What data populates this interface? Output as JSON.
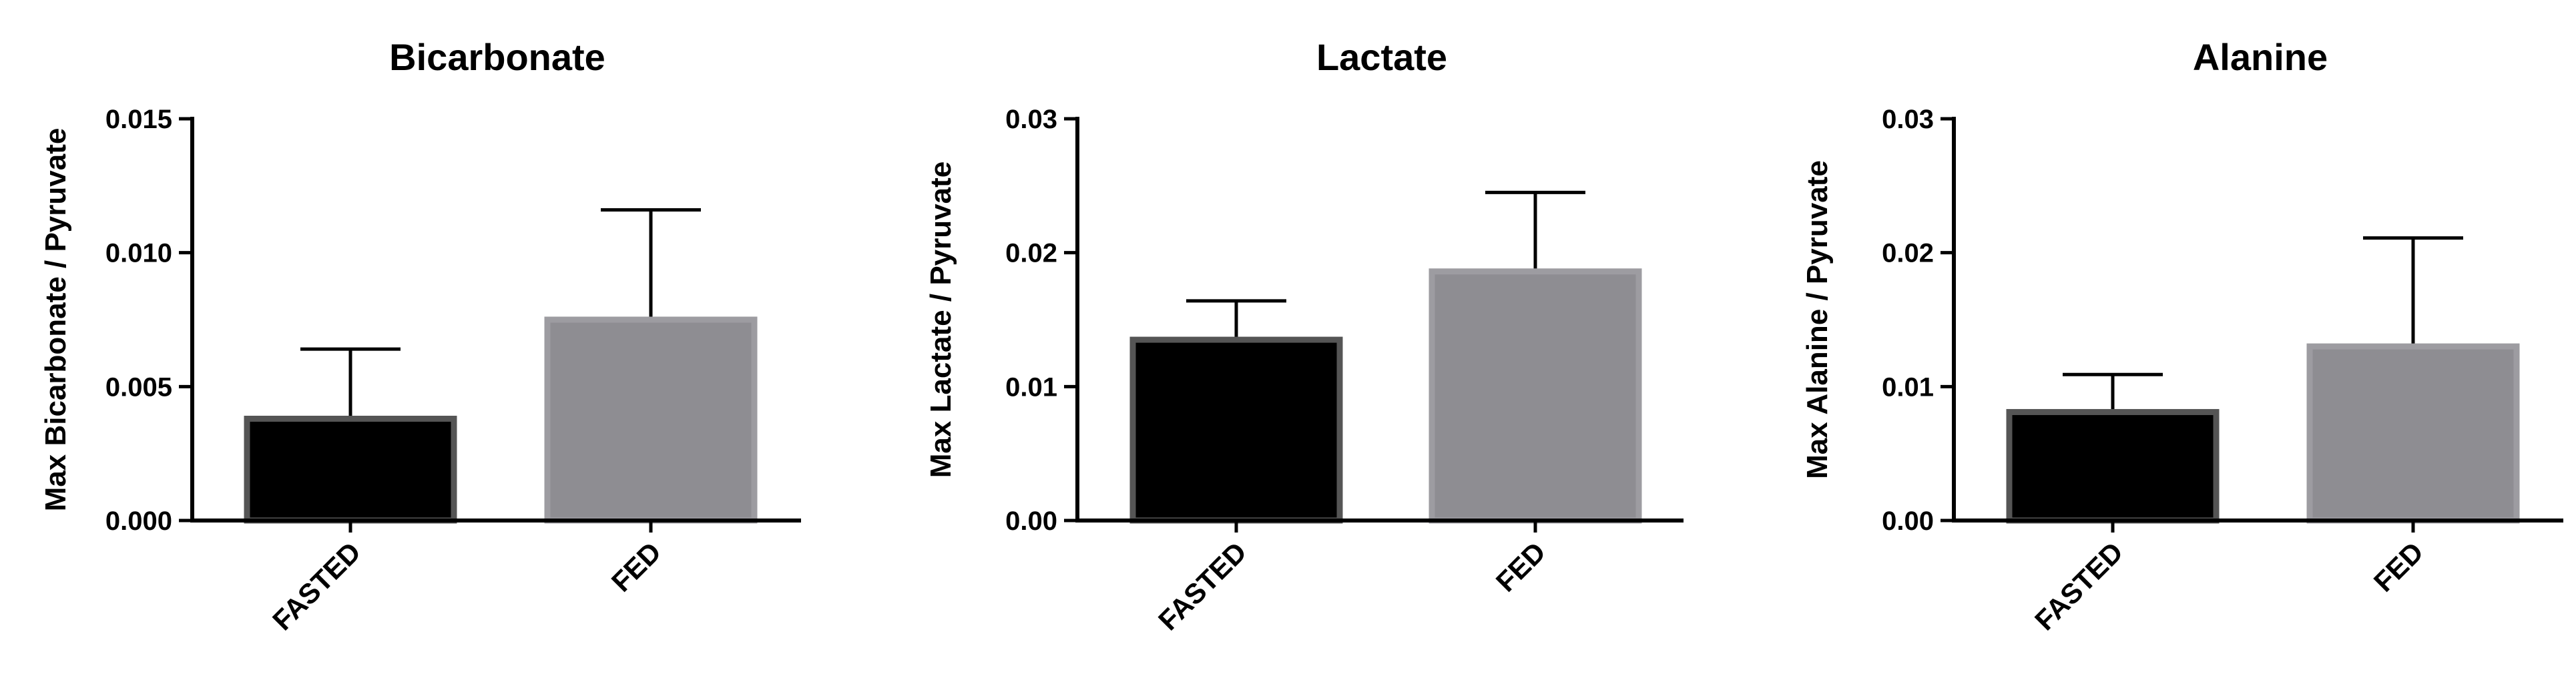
{
  "chart_data": [
    {
      "type": "bar",
      "title": "Bicarbonate",
      "ylabel": "Max Bicarbonate / Pyruvate",
      "xlabel": "",
      "categories": [
        "FASTED",
        "FED"
      ],
      "values": [
        0.0038,
        0.0075
      ],
      "errors": [
        0.0026,
        0.0041
      ],
      "ylim": [
        0,
        0.015
      ],
      "yticks": [
        0,
        0.005,
        0.01,
        0.015
      ],
      "ytick_labels": [
        "0.000",
        "0.005",
        "0.010",
        "0.015"
      ],
      "colors": [
        "#000000",
        "#8e8d92"
      ],
      "edge_colors": [
        "#555555",
        "#9d9ca1"
      ],
      "grid": false
    },
    {
      "type": "bar",
      "title": "Lactate",
      "ylabel": "Max Lactate / Pyruvate",
      "xlabel": "",
      "categories": [
        "FASTED",
        "FED"
      ],
      "values": [
        0.0135,
        0.0186
      ],
      "errors": [
        0.0029,
        0.0059
      ],
      "ylim": [
        0,
        0.03
      ],
      "yticks": [
        0,
        0.01,
        0.02,
        0.03
      ],
      "ytick_labels": [
        "0.00",
        "0.01",
        "0.02",
        "0.03"
      ],
      "colors": [
        "#000000",
        "#8e8d92"
      ],
      "edge_colors": [
        "#555555",
        "#9d9ca1"
      ],
      "grid": false
    },
    {
      "type": "bar",
      "title": "Alanine",
      "ylabel": "Max Alanine / Pyruvate",
      "xlabel": "",
      "categories": [
        "FASTED",
        "FED"
      ],
      "values": [
        0.0081,
        0.013
      ],
      "errors": [
        0.0028,
        0.0081
      ],
      "ylim": [
        0,
        0.03
      ],
      "yticks": [
        0,
        0.01,
        0.02,
        0.03
      ],
      "ytick_labels": [
        "0.00",
        "0.01",
        "0.02",
        "0.03"
      ],
      "colors": [
        "#000000",
        "#8e8d92"
      ],
      "edge_colors": [
        "#555555",
        "#9d9ca1"
      ],
      "grid": false
    }
  ]
}
